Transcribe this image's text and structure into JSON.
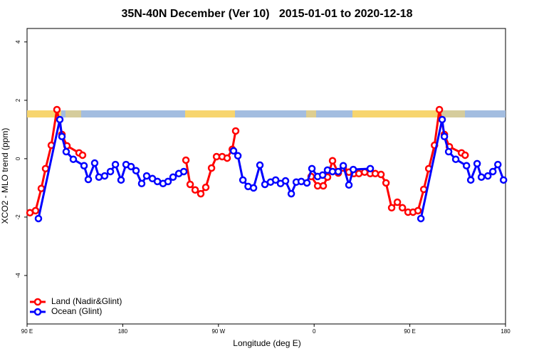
{
  "chart_data": {
    "type": "line",
    "title": "35N-40N December (Ver 10)   2015-01-01 to 2020-12-18",
    "xlabel": "Longitude (deg E)",
    "ylabel": "XCO2 - MLO trend (ppm)",
    "xlim": [
      90,
      540
    ],
    "ylim": [
      -5.66,
      4.46
    ],
    "xticks": [
      {
        "value": 90,
        "label": "90 E"
      },
      180,
      {
        "value": 270,
        "label": "90 W"
      },
      {
        "value": 360,
        "label": "0"
      },
      {
        "value": 450,
        "label": "90 E"
      },
      {
        "value": 540,
        "label": "180"
      }
    ],
    "yticks": [
      -4,
      -2,
      0,
      2,
      4
    ],
    "grid": false,
    "legend": "bottomleft",
    "series": [
      {
        "name": "Land (Nadir&Glint)",
        "color": "#ff0000",
        "x": [
          92.7,
          98,
          103.4,
          107.4,
          112.8,
          118.1,
          122.8,
          127.5,
          138.9,
          142.2,
          null,
          239.4,
          243.4,
          248.1,
          253.4,
          258.1,
          263.5,
          268.2,
          273.5,
          278.2,
          283,
          286.2,
          null,
          357.2,
          363.3,
          368.6,
          372.6,
          377.3,
          382.7,
          387.4,
          392.7,
          397.4,
          402.1,
          407.5,
          412.8,
          417.5,
          422.9,
          427.6,
          432.9,
          438.3,
          443,
          448.3,
          453,
          457.7,
          463.1,
          467.8,
          473.2,
          477.8,
          482.5,
          487.2,
          498.6,
          502
        ],
        "values": [
          -1.85,
          -1.78,
          -1.02,
          -0.34,
          0.46,
          1.68,
          0.83,
          0.44,
          0.2,
          0.12,
          null,
          -0.05,
          -0.88,
          -1.07,
          -1.2,
          -0.98,
          -0.32,
          0.07,
          0.07,
          0.02,
          0.32,
          0.95,
          null,
          -0.61,
          -0.93,
          -0.93,
          -0.63,
          -0.07,
          -0.49,
          -0.32,
          -0.46,
          -0.51,
          -0.51,
          -0.46,
          -0.51,
          -0.51,
          -0.54,
          -0.83,
          -1.68,
          -1.49,
          -1.68,
          -1.83,
          -1.83,
          -1.78,
          -1.05,
          -0.34,
          0.46,
          1.68,
          0.83,
          0.41,
          0.2,
          0.12
        ]
      },
      {
        "name": "Ocean (Glint)",
        "color": "#0000ff",
        "x": [
          100.7,
          120.8,
          122.8,
          126.8,
          133.5,
          143.6,
          147.6,
          153.6,
          157.6,
          163,
          168.4,
          173.1,
          178.4,
          183.1,
          187.8,
          192.5,
          197.8,
          202.5,
          207.9,
          212.6,
          217.9,
          222.6,
          227.3,
          232.7,
          237.4,
          null,
          284.2,
          288.3,
          293,
          297.9,
          303,
          309,
          313.7,
          319,
          323.8,
          328.4,
          333.1,
          338.5,
          343.2,
          347.9,
          353.2,
          357.9,
          363.3,
          368,
          372.6,
          377.3,
          382.7,
          387.4,
          392.7,
          396.8,
          412.8,
          null,
          460.4,
          480.4,
          482.5,
          486.5,
          493.2,
          503.3,
          507.3,
          513.3,
          517.3,
          523.4,
          528.1,
          532.8,
          538.1
        ],
        "values": [
          -2.05,
          1.34,
          0.76,
          0.24,
          -0.02,
          -0.24,
          -0.71,
          -0.15,
          -0.63,
          -0.59,
          -0.44,
          -0.2,
          -0.73,
          -0.2,
          -0.27,
          -0.41,
          -0.85,
          -0.59,
          -0.68,
          -0.78,
          -0.85,
          -0.78,
          -0.63,
          -0.51,
          -0.44,
          null,
          0.27,
          0.1,
          -0.73,
          -0.95,
          -1.0,
          -0.22,
          -0.88,
          -0.8,
          -0.73,
          -0.85,
          -0.76,
          -1.2,
          -0.8,
          -0.78,
          -0.83,
          -0.34,
          -0.61,
          -0.56,
          -0.39,
          -0.44,
          -0.44,
          -0.24,
          -0.9,
          -0.37,
          -0.34,
          null,
          -2.05,
          1.34,
          0.76,
          0.24,
          -0.02,
          -0.24,
          -0.73,
          -0.17,
          -0.63,
          -0.59,
          -0.44,
          -0.2,
          -0.73
        ]
      }
    ]
  }
}
